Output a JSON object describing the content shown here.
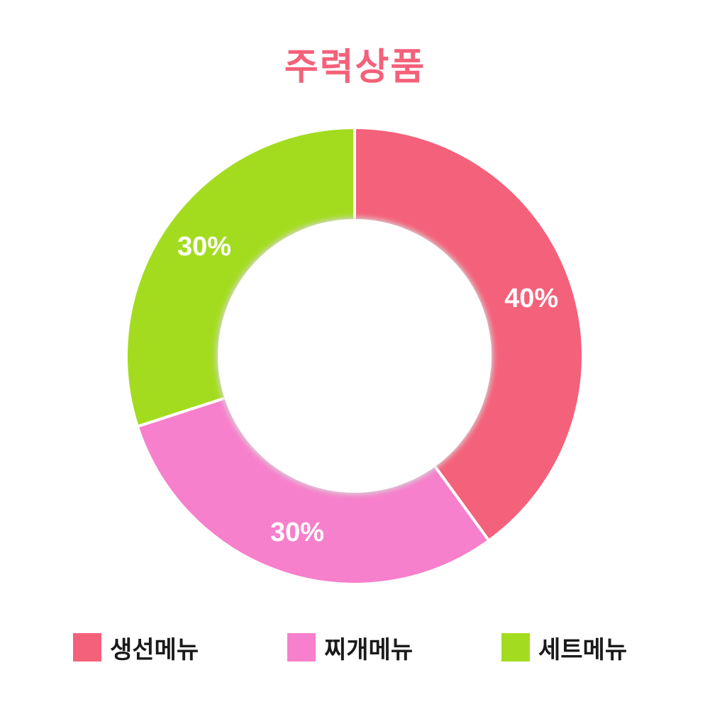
{
  "chart_data": {
    "type": "pie",
    "title": "주력상품",
    "donut": true,
    "start_angle_deg": 0,
    "direction": "clockwise",
    "legend_position": "bottom",
    "series": [
      {
        "name": "생선메뉴",
        "value": 40,
        "label": "40%",
        "color": "#f4617a"
      },
      {
        "name": "찌개메뉴",
        "value": 30,
        "label": "30%",
        "color": "#f680cb"
      },
      {
        "name": "세트메뉴",
        "value": 30,
        "label": "30%",
        "color": "#a3dc1f"
      }
    ]
  }
}
